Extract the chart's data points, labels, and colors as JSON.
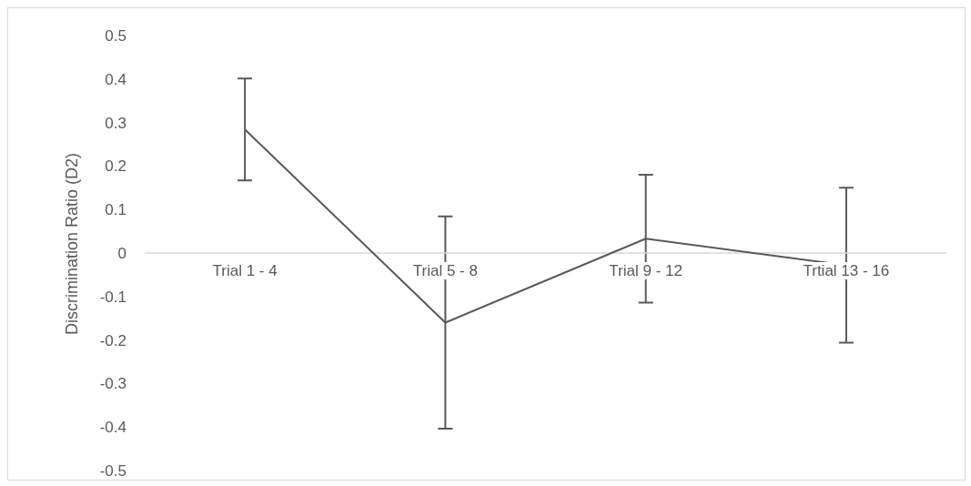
{
  "chart_data": {
    "type": "line",
    "ylabel": "Discrimination Ratio (D2)",
    "categories": [
      "Trial 1 - 4",
      "Trial 5 - 8",
      "Trial 9 - 12",
      "Trtial 13 - 16"
    ],
    "series": [
      {
        "color": "#595959",
        "values": [
          0.284,
          -0.16,
          0.033,
          -0.028
        ],
        "errors": [
          0.117,
          0.244,
          0.147,
          0.178
        ]
      }
    ],
    "ylim": [
      -0.5,
      0.5
    ],
    "yticks": [
      -0.5,
      -0.4,
      -0.3,
      -0.2,
      -0.1,
      0,
      0.1,
      0.2,
      0.3,
      0.4,
      0.5
    ],
    "grid": false,
    "marker": "none",
    "line_style": "solid"
  }
}
